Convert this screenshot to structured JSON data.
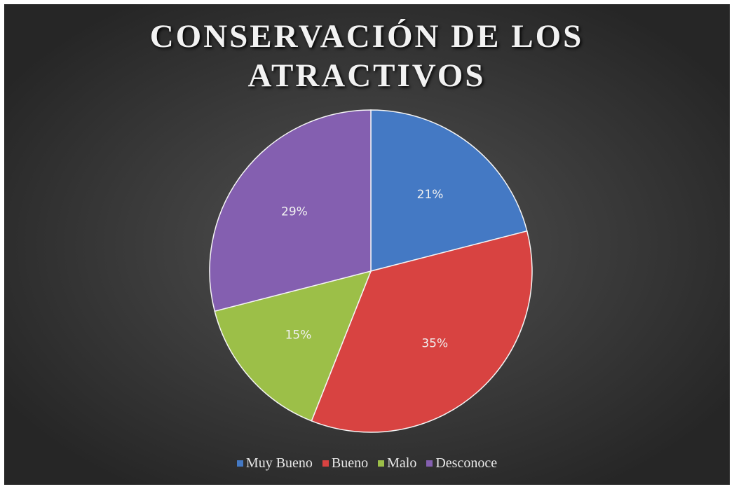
{
  "chart_data": {
    "type": "pie",
    "title": "CONSERVACIÓN DE LOS ATRACTIVOS",
    "categories": [
      "Muy Bueno",
      "Bueno",
      "Malo",
      "Desconoce"
    ],
    "values": [
      21,
      35,
      15,
      29
    ],
    "value_labels": [
      "21%",
      "35%",
      "15%",
      "29%"
    ],
    "colors": [
      "#4479c4",
      "#d84341",
      "#9cbf48",
      "#845fb0"
    ],
    "legend": "bottom"
  }
}
